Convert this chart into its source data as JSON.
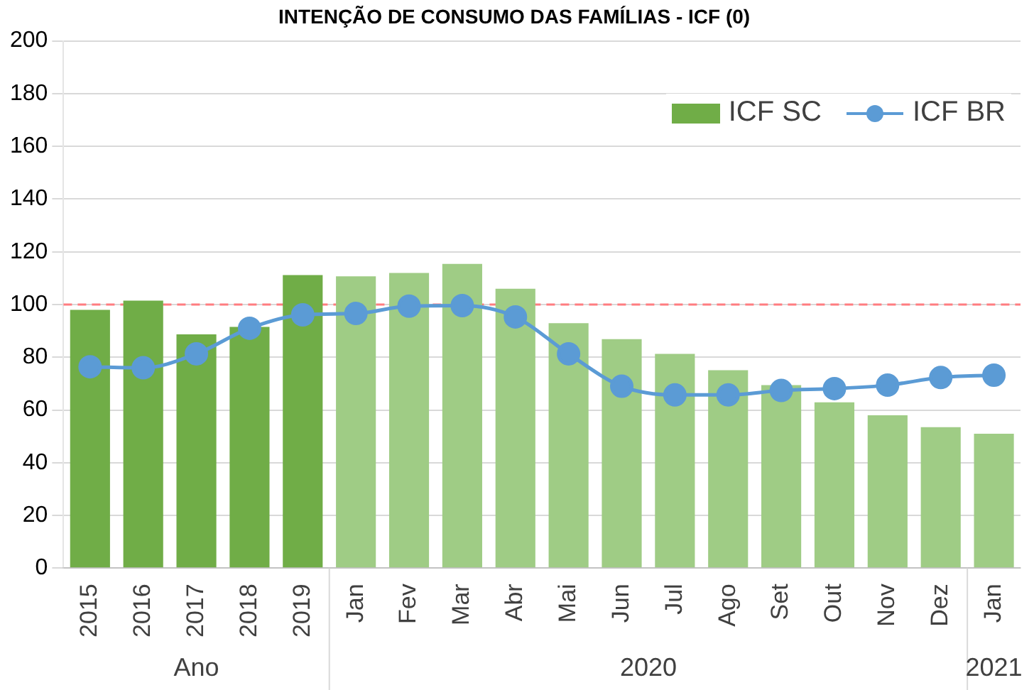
{
  "chart_data": {
    "type": "bar",
    "title": "INTENÇÃO DE CONSUMO DAS FAMÍLIAS - ICF (0)",
    "categories": [
      "2015",
      "2016",
      "2017",
      "2018",
      "2019",
      "Jan",
      "Fev",
      "Mar",
      "Abr",
      "Mai",
      "Jun",
      "Jul",
      "Ago",
      "Set",
      "Out",
      "Nov",
      "Dez",
      "Jan"
    ],
    "series": [
      {
        "name": "ICF SC",
        "color": "#70ad47",
        "colors": [
          "#70ad47",
          "#70ad47",
          "#70ad47",
          "#70ad47",
          "#70ad47",
          "#9fcc85",
          "#9fcc85",
          "#9fcc85",
          "#9fcc85",
          "#9fcc85",
          "#9fcc85",
          "#9fcc85",
          "#9fcc85",
          "#9fcc85",
          "#9fcc85",
          "#9fcc85",
          "#9fcc85",
          "#9fcc85"
        ],
        "values": [
          98,
          101.5,
          88.7,
          91.5,
          111.2,
          110.7,
          112,
          115.4,
          106,
          92.9,
          86.9,
          81.3,
          75.1,
          69.4,
          62.9,
          58,
          53.5,
          51
        ]
      },
      {
        "name": "ICF BR",
        "type": "line",
        "color": "#5b9bd5",
        "marker": "circle",
        "values": [
          76.4,
          76,
          81.3,
          91,
          96.1,
          96.6,
          99.4,
          99.6,
          95.3,
          81.3,
          69,
          65.7,
          65.7,
          67.4,
          68.1,
          69.4,
          72.3,
          73.2
        ]
      }
    ],
    "ylim": [
      0,
      200
    ],
    "yticks": [
      0,
      20,
      40,
      60,
      80,
      100,
      120,
      140,
      160,
      180,
      200
    ],
    "grid": "y",
    "legend": "top right",
    "ref_lines": [
      {
        "axis": "y",
        "value": 100,
        "color": "#ff7c80",
        "line_style": "dashed"
      }
    ],
    "annotations": [
      "Ano",
      "2020",
      "2021"
    ]
  }
}
